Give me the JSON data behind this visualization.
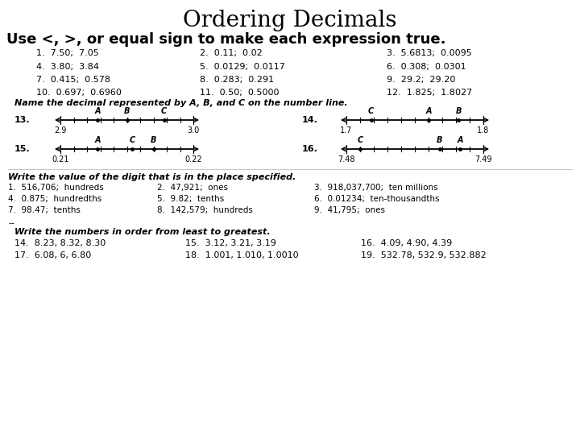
{
  "title": "Ordering Decimals",
  "subtitle": "Use <, >, or equal sign to make each expression true.",
  "section1_items": [
    [
      "1.  7.50;  7.05",
      "2.  0.11;  0.02",
      "3.  5.6813;  0.0095"
    ],
    [
      "4.  3.80;  3.84",
      "5.  0.0129;  0.0117",
      "6.  0.308;  0.0301"
    ],
    [
      "7.  0.415;  0.578",
      "8.  0.283;  0.291",
      "9.  29.2;  29.20"
    ],
    [
      "10.  0.697;  0.6960",
      "11.  0.50;  0.5000",
      "12.  1.825;  1.8027"
    ]
  ],
  "number_line_header": "Name the decimal represented by A, B, and C on the number line.",
  "number_lines": [
    {
      "num": "13.",
      "left": "2.9",
      "right": "3.0",
      "labels": [
        [
          "A",
          0.28
        ],
        [
          "B",
          0.5
        ],
        [
          "C",
          0.78
        ]
      ]
    },
    {
      "num": "14.",
      "left": "1.7",
      "right": "1.8",
      "labels": [
        [
          "C",
          0.18
        ],
        [
          "A",
          0.6
        ],
        [
          "B",
          0.82
        ]
      ]
    },
    {
      "num": "15.",
      "left": "0.21",
      "right": "0.22",
      "labels": [
        [
          "A",
          0.28
        ],
        [
          "C",
          0.54
        ],
        [
          "B",
          0.7
        ]
      ]
    },
    {
      "num": "16.",
      "left": "7.48",
      "right": "7.49",
      "labels": [
        [
          "C",
          0.1
        ],
        [
          "B",
          0.68
        ],
        [
          "A",
          0.83
        ]
      ]
    }
  ],
  "section2_header": "Write the value of the digit that is in the place specified.",
  "section2_items": [
    [
      "1.  516,706;  hundreds",
      "2.  47,921;  ones",
      "3.  918,037,700;  ten millions"
    ],
    [
      "4.  0.875;  hundredths",
      "5.  9.82;  tenths",
      "6.  0.01234;  ten-thousandths"
    ],
    [
      "7.  98.47;  tenths",
      "8.  142,579;  hundreds",
      "9.  41,795;  ones"
    ]
  ],
  "section3_header": "Write the numbers in order from least to greatest.",
  "section3_items": [
    [
      "14.  8.23, 8.32, 8.30",
      "15.  3.12, 3.21, 3.19",
      "16.  4.09, 4.90, 4.39"
    ],
    [
      "17.  6.08, 6, 6.80",
      "18.  1.001, 1.010, 1.0010",
      "19.  532.78, 532.9, 532.882"
    ]
  ],
  "bg_color": "#ffffff",
  "text_color": "#000000",
  "title_fontsize": 20,
  "subtitle_fontsize": 13,
  "body_fontsize": 8,
  "small_fontsize": 7.5
}
